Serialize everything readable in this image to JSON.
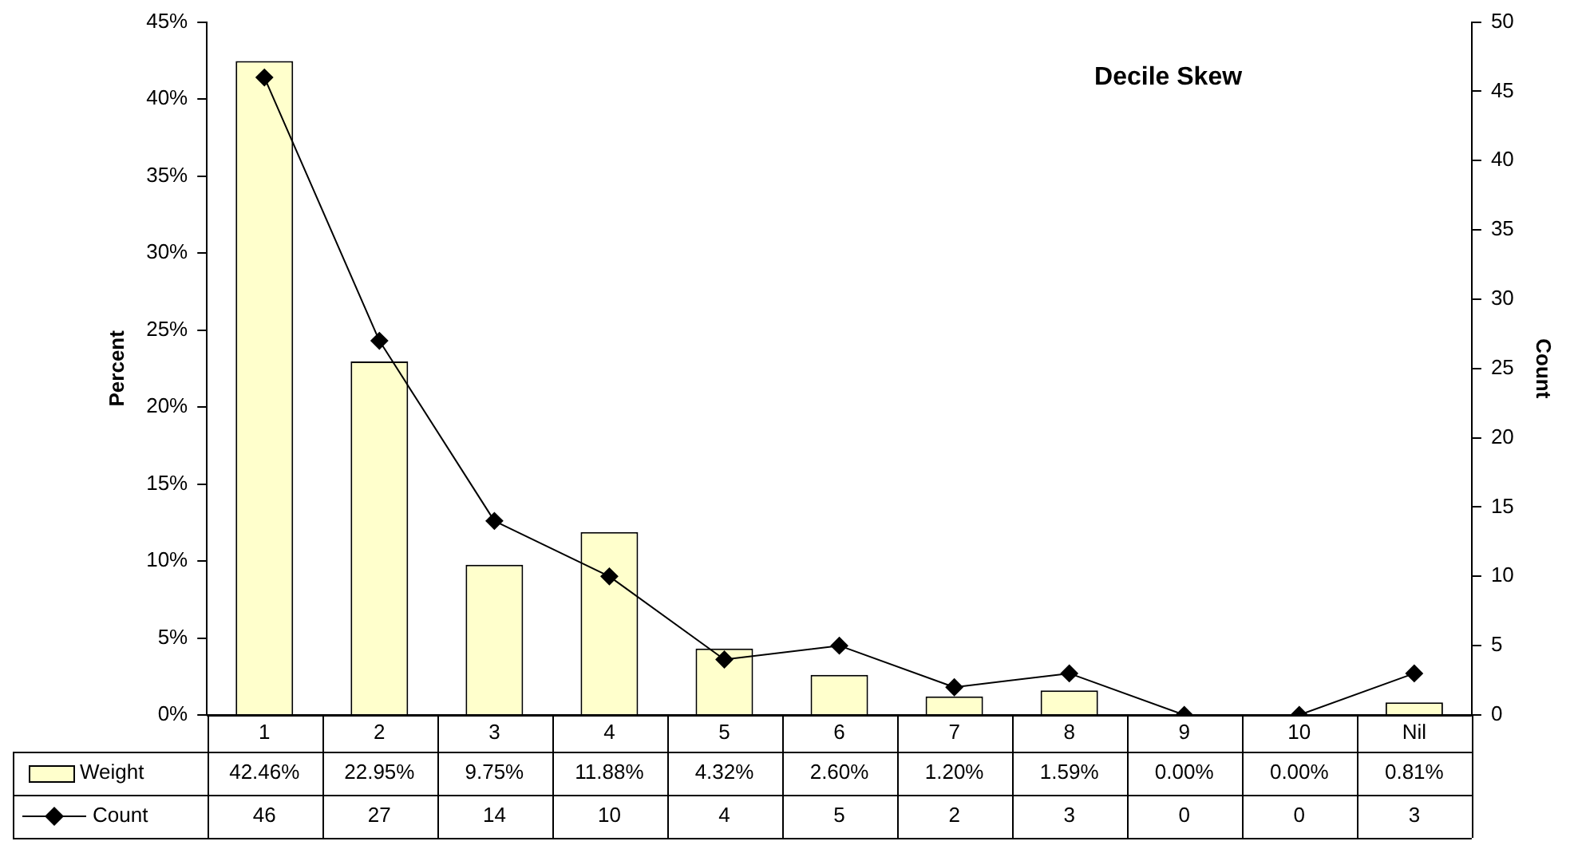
{
  "chart_data": {
    "type": "bar",
    "title": "Decile Skew",
    "ylabel": "Percent",
    "y2label": "Count",
    "categories": [
      "1",
      "2",
      "3",
      "4",
      "5",
      "6",
      "7",
      "8",
      "9",
      "10",
      "Nil"
    ],
    "series": [
      {
        "name": "Weight",
        "color": "#ffffcc",
        "values": [
          42.46,
          22.95,
          9.75,
          11.88,
          4.32,
          2.6,
          1.2,
          1.59,
          0.0,
          0.0,
          0.81
        ],
        "value_labels": [
          "42.46%",
          "22.95%",
          "9.75%",
          "11.88%",
          "4.32%",
          "2.60%",
          "1.20%",
          "1.59%",
          "0.00%",
          "0.00%",
          "0.81%"
        ]
      },
      {
        "name": "Count",
        "type": "line",
        "axis": "y2",
        "color": "#000000",
        "marker": "diamond",
        "values": [
          46,
          27,
          14,
          10,
          4,
          5,
          2,
          3,
          0,
          0,
          3
        ],
        "value_labels": [
          "46",
          "27",
          "14",
          "10",
          "4",
          "5",
          "2",
          "3",
          "0",
          "0",
          "3"
        ]
      }
    ],
    "ylim": [
      0,
      45
    ],
    "yticks": [
      {
        "value": 0,
        "label": "0%"
      },
      {
        "value": 5,
        "label": "5%"
      },
      {
        "value": 10,
        "label": "10%"
      },
      {
        "value": 15,
        "label": "15%"
      },
      {
        "value": 20,
        "label": "20%"
      },
      {
        "value": 25,
        "label": "25%"
      },
      {
        "value": 30,
        "label": "30%"
      },
      {
        "value": 35,
        "label": "35%"
      },
      {
        "value": 40,
        "label": "40%"
      },
      {
        "value": 45,
        "label": "45%"
      }
    ],
    "y2lim": [
      0,
      50
    ],
    "y2ticks": [
      0,
      5,
      10,
      15,
      20,
      25,
      30,
      35,
      40,
      45,
      50
    ],
    "grid": false,
    "legend": "bottom left"
  }
}
